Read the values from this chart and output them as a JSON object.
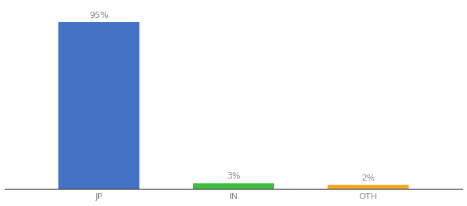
{
  "categories": [
    "JP",
    "IN",
    "OTH"
  ],
  "values": [
    95,
    3,
    2
  ],
  "bar_colors": [
    "#4472c4",
    "#3dbf3d",
    "#f5a623"
  ],
  "labels": [
    "95%",
    "3%",
    "2%"
  ],
  "ylim": [
    0,
    105
  ],
  "background_color": "#ffffff",
  "bar_width": 0.6,
  "label_fontsize": 9,
  "tick_fontsize": 9,
  "label_color": "#888888"
}
